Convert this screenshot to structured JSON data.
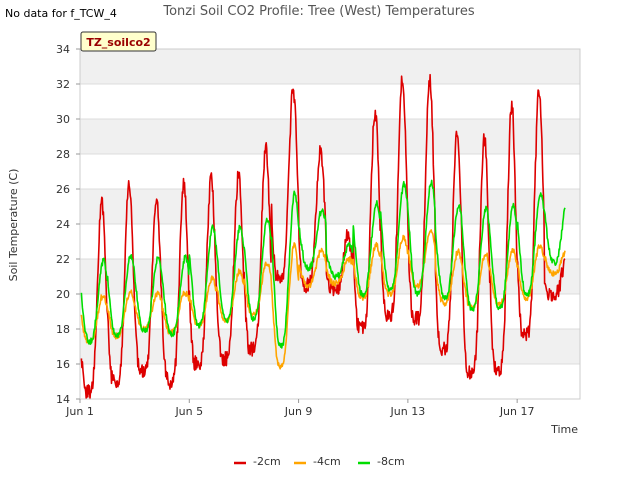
{
  "chart_data": {
    "type": "line",
    "title": "Tonzi Soil CO2 Profile: Tree (West) Temperatures",
    "no_data_note": "No data for f_TCW_4",
    "badge": "TZ_soilco2",
    "xlabel": "Time",
    "ylabel": "Soil Temperature (C)",
    "xlim": [
      1,
      19.3
    ],
    "ylim": [
      14,
      34
    ],
    "x_ticks": [
      {
        "value": 1,
        "label": "Jun 1"
      },
      {
        "value": 5,
        "label": "Jun 5"
      },
      {
        "value": 9,
        "label": "Jun 9"
      },
      {
        "value": 13,
        "label": "Jun 13"
      },
      {
        "value": 17,
        "label": "Jun 17"
      }
    ],
    "y_ticks": [
      14,
      16,
      18,
      20,
      22,
      24,
      26,
      28,
      30,
      32,
      34
    ],
    "grid": true,
    "legend_position": "bottom-center",
    "series": [
      {
        "name": "-2cm",
        "color": "#dd0000",
        "daily_min": [
          14.4,
          15.0,
          15.5,
          15.0,
          16.0,
          16.3,
          16.8,
          21.0,
          20.5,
          20.3,
          18.0,
          18.8,
          18.6,
          16.9,
          15.5,
          15.6,
          17.6,
          20.0
        ],
        "daily_max": [
          25.3,
          26.3,
          25.2,
          26.2,
          26.6,
          26.8,
          28.5,
          31.7,
          28.2,
          23.3,
          30.5,
          32.4,
          32.2,
          29.1,
          29.0,
          30.8,
          31.7,
          22.0
        ]
      },
      {
        "name": "-4cm",
        "color": "#ffa500",
        "daily_min": [
          17.3,
          17.6,
          18.0,
          17.8,
          18.2,
          18.5,
          18.8,
          15.8,
          20.5,
          20.6,
          19.8,
          20.0,
          20.5,
          19.5,
          19.2,
          19.4,
          19.8,
          21.2
        ],
        "daily_max": [
          19.9,
          20.1,
          20.0,
          20.1,
          20.9,
          21.3,
          21.8,
          22.8,
          22.5,
          22.0,
          22.8,
          23.3,
          23.6,
          22.4,
          22.3,
          22.5,
          22.8,
          22.6
        ]
      },
      {
        "name": "-8cm",
        "color": "#00dd00",
        "daily_min": [
          17.3,
          17.6,
          17.9,
          17.7,
          18.2,
          18.5,
          18.6,
          17.0,
          21.5,
          21.0,
          20.0,
          20.2,
          20.0,
          19.8,
          19.1,
          19.2,
          20.0,
          21.8
        ],
        "daily_max": [
          21.9,
          22.2,
          22.1,
          22.1,
          23.8,
          23.8,
          24.3,
          25.8,
          24.8,
          22.8,
          25.2,
          26.3,
          26.4,
          25.0,
          24.9,
          25.0,
          25.8,
          25.6
        ]
      }
    ]
  }
}
